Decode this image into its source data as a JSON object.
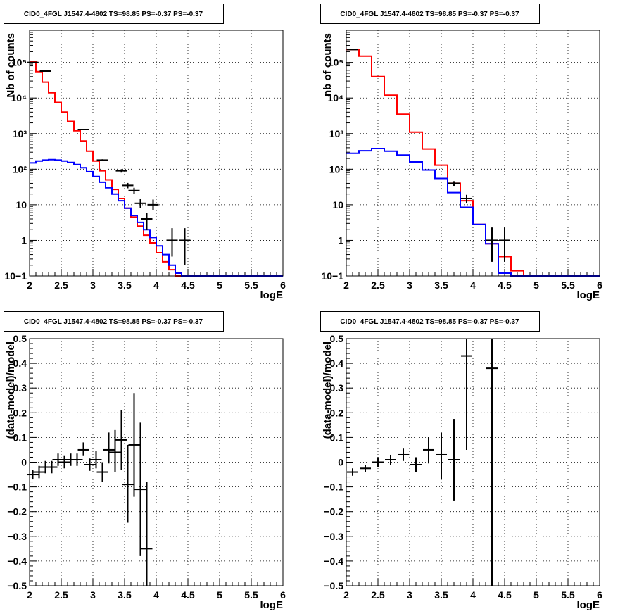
{
  "chart_data": [
    {
      "type": "histogram",
      "title": "CID0_4FGL J1547.4-4802 TS=98.85 PS=-0.37 PS=-0.37",
      "xlabel": "logE",
      "ylabel": "Nb of counts",
      "xlim": [
        2,
        6
      ],
      "ylim": [
        0.1,
        800000
      ],
      "yscale": "log",
      "grid": true,
      "xticks": [
        "2",
        "2.5",
        "3",
        "3.5",
        "4",
        "4.5",
        "5",
        "5.5",
        "6"
      ],
      "yticks": [
        "10−1",
        "1",
        "10",
        "10²",
        "10³",
        "10⁴",
        "10⁵"
      ],
      "series": [
        {
          "color": "#ff0000",
          "kind": "step",
          "edges": [
            2,
            2.1,
            2.2,
            2.3,
            2.4,
            2.5,
            2.6,
            2.7,
            2.8,
            2.9,
            3,
            3.1,
            3.2,
            3.3,
            3.4,
            3.5,
            3.6,
            3.7,
            3.8,
            3.9,
            4,
            4.1,
            4.2,
            4.3,
            4.4,
            4.5,
            4.6,
            4.7,
            4.8,
            4.9,
            5,
            5.1,
            5.2,
            5.3,
            5.4,
            5.5,
            5.6,
            5.7,
            5.8,
            5.9,
            6
          ],
          "values": [
            105000,
            55000,
            28000,
            14000,
            7500,
            4000,
            2200,
            1200,
            620,
            320,
            170,
            90,
            50,
            27,
            15,
            8,
            4.5,
            2.5,
            1.4,
            0.85,
            0.45,
            0.25,
            0.15,
            0.1,
            0.1,
            0.1,
            0.1,
            0.1,
            0.1,
            0.1,
            0.1,
            0.1,
            0.1,
            0.1,
            0.1,
            0.1,
            0.1,
            0.1,
            0.1,
            0.1
          ]
        },
        {
          "color": "#0000ff",
          "kind": "step",
          "edges": [
            2,
            2.1,
            2.2,
            2.3,
            2.4,
            2.5,
            2.6,
            2.7,
            2.8,
            2.9,
            3,
            3.1,
            3.2,
            3.3,
            3.4,
            3.5,
            3.6,
            3.7,
            3.8,
            3.9,
            4,
            4.1,
            4.2,
            4.3,
            4.4,
            4.5,
            4.6,
            4.7,
            4.8,
            4.9,
            5,
            5.1,
            5.2,
            5.3,
            5.4,
            5.5,
            5.6,
            5.7,
            5.8,
            5.9,
            6
          ],
          "values": [
            150,
            170,
            180,
            185,
            180,
            170,
            155,
            135,
            110,
            85,
            62,
            43,
            30,
            20,
            13,
            8,
            5,
            3.2,
            2,
            1.2,
            0.7,
            0.4,
            0.2,
            0.12,
            0.1,
            0.1,
            0.1,
            0.1,
            0.1,
            0.1,
            0.1,
            0.1,
            0.1,
            0.1,
            0.1,
            0.1,
            0.1,
            0.1,
            0.1,
            0.1
          ]
        },
        {
          "color": "#000000",
          "kind": "points",
          "points": [
            {
              "x": 2.05,
              "y": 100000,
              "ylo": 99000,
              "yhi": 101000
            },
            {
              "x": 2.25,
              "y": 57000,
              "ylo": 56000,
              "yhi": 58000
            },
            {
              "x": 2.85,
              "y": 1300,
              "ylo": 1250,
              "yhi": 1350
            },
            {
              "x": 3.15,
              "y": 180,
              "ylo": 170,
              "yhi": 190
            },
            {
              "x": 3.45,
              "y": 90,
              "ylo": 80,
              "yhi": 100
            },
            {
              "x": 3.55,
              "y": 35,
              "ylo": 29,
              "yhi": 41
            },
            {
              "x": 3.65,
              "y": 25,
              "ylo": 20,
              "yhi": 30
            },
            {
              "x": 3.75,
              "y": 11,
              "ylo": 8,
              "yhi": 15
            },
            {
              "x": 3.85,
              "y": 4,
              "ylo": 2,
              "yhi": 6
            },
            {
              "x": 3.95,
              "y": 10,
              "ylo": 7,
              "yhi": 14
            },
            {
              "x": 4.25,
              "y": 1,
              "ylo": 0.35,
              "yhi": 2.2
            },
            {
              "x": 4.45,
              "y": 1,
              "ylo": 0.2,
              "yhi": 2.2
            }
          ]
        }
      ]
    },
    {
      "type": "histogram",
      "title": "CID0_4FGL J1547.4-4802 TS=98.85 PS=-0.37 PS=-0.37",
      "xlabel": "logE",
      "ylabel": "nb of counts",
      "xlim": [
        2,
        6
      ],
      "ylim": [
        0.1,
        800000
      ],
      "yscale": "log",
      "grid": true,
      "xticks": [
        "2",
        "2.5",
        "3",
        "3.5",
        "4",
        "4.5",
        "5",
        "5.5",
        "6"
      ],
      "yticks": [
        "10−1",
        "1",
        "10",
        "10²",
        "10³",
        "10⁴",
        "10⁵"
      ],
      "series": [
        {
          "color": "#ff0000",
          "kind": "step",
          "edges": [
            2,
            2.2,
            2.4,
            2.6,
            2.8,
            3,
            3.2,
            3.4,
            3.6,
            3.8,
            4,
            4.2,
            4.4,
            4.6,
            4.8,
            5,
            5.2,
            5.4,
            5.6,
            5.8,
            6
          ],
          "values": [
            230000,
            150000,
            40000,
            12000,
            3500,
            1100,
            370,
            130,
            40,
            13,
            2.8,
            0.8,
            0.35,
            0.14,
            0.1,
            0.1,
            0.1,
            0.1,
            0.1,
            0.1
          ]
        },
        {
          "color": "#0000ff",
          "kind": "step",
          "edges": [
            2,
            2.2,
            2.4,
            2.6,
            2.8,
            3,
            3.2,
            3.4,
            3.6,
            3.8,
            4,
            4.2,
            4.4,
            4.6,
            4.8,
            5,
            5.2,
            5.4,
            5.6,
            5.8,
            6
          ],
          "values": [
            280,
            330,
            380,
            320,
            250,
            160,
            95,
            55,
            22,
            8.5,
            2.8,
            0.8,
            0.12,
            0.1,
            0.1,
            0.1,
            0.1,
            0.1,
            0.1,
            0.1
          ]
        },
        {
          "color": "#000000",
          "kind": "points",
          "points": [
            {
              "x": 2.1,
              "y": 230000,
              "ylo": 228000,
              "yhi": 232000
            },
            {
              "x": 3.7,
              "y": 40,
              "ylo": 34,
              "yhi": 46
            },
            {
              "x": 3.9,
              "y": 15,
              "ylo": 11,
              "yhi": 19
            },
            {
              "x": 4.3,
              "y": 1,
              "ylo": 0.25,
              "yhi": 2.3
            },
            {
              "x": 4.5,
              "y": 1,
              "ylo": 0.25,
              "yhi": 2.3
            }
          ]
        }
      ]
    },
    {
      "type": "scatter",
      "title": "CID0_4FGL J1547.4-4802 TS=98.85 PS=-0.37 PS=-0.37",
      "xlabel": "logE",
      "ylabel": "(data-model)/model",
      "xlim": [
        2,
        6
      ],
      "ylim": [
        -0.5,
        0.5
      ],
      "grid": true,
      "xticks": [
        "2",
        "2.5",
        "3",
        "3.5",
        "4",
        "4.5",
        "5",
        "5.5",
        "6"
      ],
      "yticks": [
        "−0.5",
        "−0.4",
        "−0.3",
        "−0.2",
        "−0.1",
        "0",
        "0.1",
        "0.2",
        "0.3",
        "0.4",
        "0.5"
      ],
      "series": [
        {
          "color": "#000000",
          "kind": "points",
          "points": [
            {
              "x": 2.05,
              "y": -0.05,
              "ylo": -0.07,
              "yhi": -0.03
            },
            {
              "x": 2.15,
              "y": -0.04,
              "ylo": -0.065,
              "yhi": -0.015
            },
            {
              "x": 2.25,
              "y": -0.02,
              "ylo": -0.045,
              "yhi": 0.005
            },
            {
              "x": 2.35,
              "y": -0.02,
              "ylo": -0.045,
              "yhi": 0.005
            },
            {
              "x": 2.45,
              "y": 0.01,
              "ylo": -0.015,
              "yhi": 0.035
            },
            {
              "x": 2.55,
              "y": 0.0,
              "ylo": -0.025,
              "yhi": 0.025
            },
            {
              "x": 2.65,
              "y": 0.01,
              "ylo": -0.015,
              "yhi": 0.035
            },
            {
              "x": 2.75,
              "y": 0.01,
              "ylo": -0.015,
              "yhi": 0.035
            },
            {
              "x": 2.85,
              "y": 0.05,
              "ylo": 0.025,
              "yhi": 0.08
            },
            {
              "x": 2.95,
              "y": -0.01,
              "ylo": -0.035,
              "yhi": 0.015
            },
            {
              "x": 3.05,
              "y": 0.01,
              "ylo": -0.025,
              "yhi": 0.045
            },
            {
              "x": 3.15,
              "y": -0.04,
              "ylo": -0.08,
              "yhi": 0.0
            },
            {
              "x": 3.25,
              "y": 0.05,
              "ylo": -0.005,
              "yhi": 0.12
            },
            {
              "x": 3.35,
              "y": 0.04,
              "ylo": -0.04,
              "yhi": 0.13
            },
            {
              "x": 3.45,
              "y": 0.09,
              "ylo": -0.03,
              "yhi": 0.21
            },
            {
              "x": 3.55,
              "y": -0.09,
              "ylo": -0.245,
              "yhi": 0.07
            },
            {
              "x": 3.65,
              "y": 0.07,
              "ylo": -0.14,
              "yhi": 0.28
            },
            {
              "x": 3.75,
              "y": -0.11,
              "ylo": -0.38,
              "yhi": 0.16
            },
            {
              "x": 3.85,
              "y": -0.35,
              "ylo": -0.5,
              "yhi": -0.08
            }
          ]
        }
      ]
    },
    {
      "type": "scatter",
      "title": "CID0_4FGL J1547.4-4802 TS=98.85 PS=-0.37 PS=-0.37",
      "xlabel": "logE",
      "ylabel": "(data-model)/model",
      "xlim": [
        2,
        6
      ],
      "ylim": [
        -0.5,
        0.5
      ],
      "grid": true,
      "xticks": [
        "2",
        "2.5",
        "3",
        "3.5",
        "4",
        "4.5",
        "5",
        "5.5",
        "6"
      ],
      "yticks": [
        "−0.5",
        "−0.4",
        "−0.3",
        "−0.2",
        "−0.1",
        "0",
        "0.1",
        "0.2",
        "0.3",
        "0.4",
        "0.5"
      ],
      "series": [
        {
          "color": "#000000",
          "kind": "points",
          "points": [
            {
              "x": 2.1,
              "y": -0.04,
              "ylo": -0.055,
              "yhi": -0.025
            },
            {
              "x": 2.3,
              "y": -0.025,
              "ylo": -0.04,
              "yhi": -0.01
            },
            {
              "x": 2.5,
              "y": 0.0,
              "ylo": -0.02,
              "yhi": 0.02
            },
            {
              "x": 2.7,
              "y": 0.01,
              "ylo": -0.01,
              "yhi": 0.03
            },
            {
              "x": 2.9,
              "y": 0.03,
              "ylo": 0.005,
              "yhi": 0.055
            },
            {
              "x": 3.1,
              "y": -0.01,
              "ylo": -0.04,
              "yhi": 0.02
            },
            {
              "x": 3.3,
              "y": 0.05,
              "ylo": -0.005,
              "yhi": 0.1
            },
            {
              "x": 3.5,
              "y": 0.03,
              "ylo": -0.07,
              "yhi": 0.12
            },
            {
              "x": 3.7,
              "y": 0.01,
              "ylo": -0.155,
              "yhi": 0.175
            },
            {
              "x": 3.9,
              "y": 0.43,
              "ylo": 0.05,
              "yhi": 0.5
            },
            {
              "x": 4.3,
              "y": 0.38,
              "ylo": -0.5,
              "yhi": 0.5
            }
          ]
        }
      ]
    }
  ]
}
